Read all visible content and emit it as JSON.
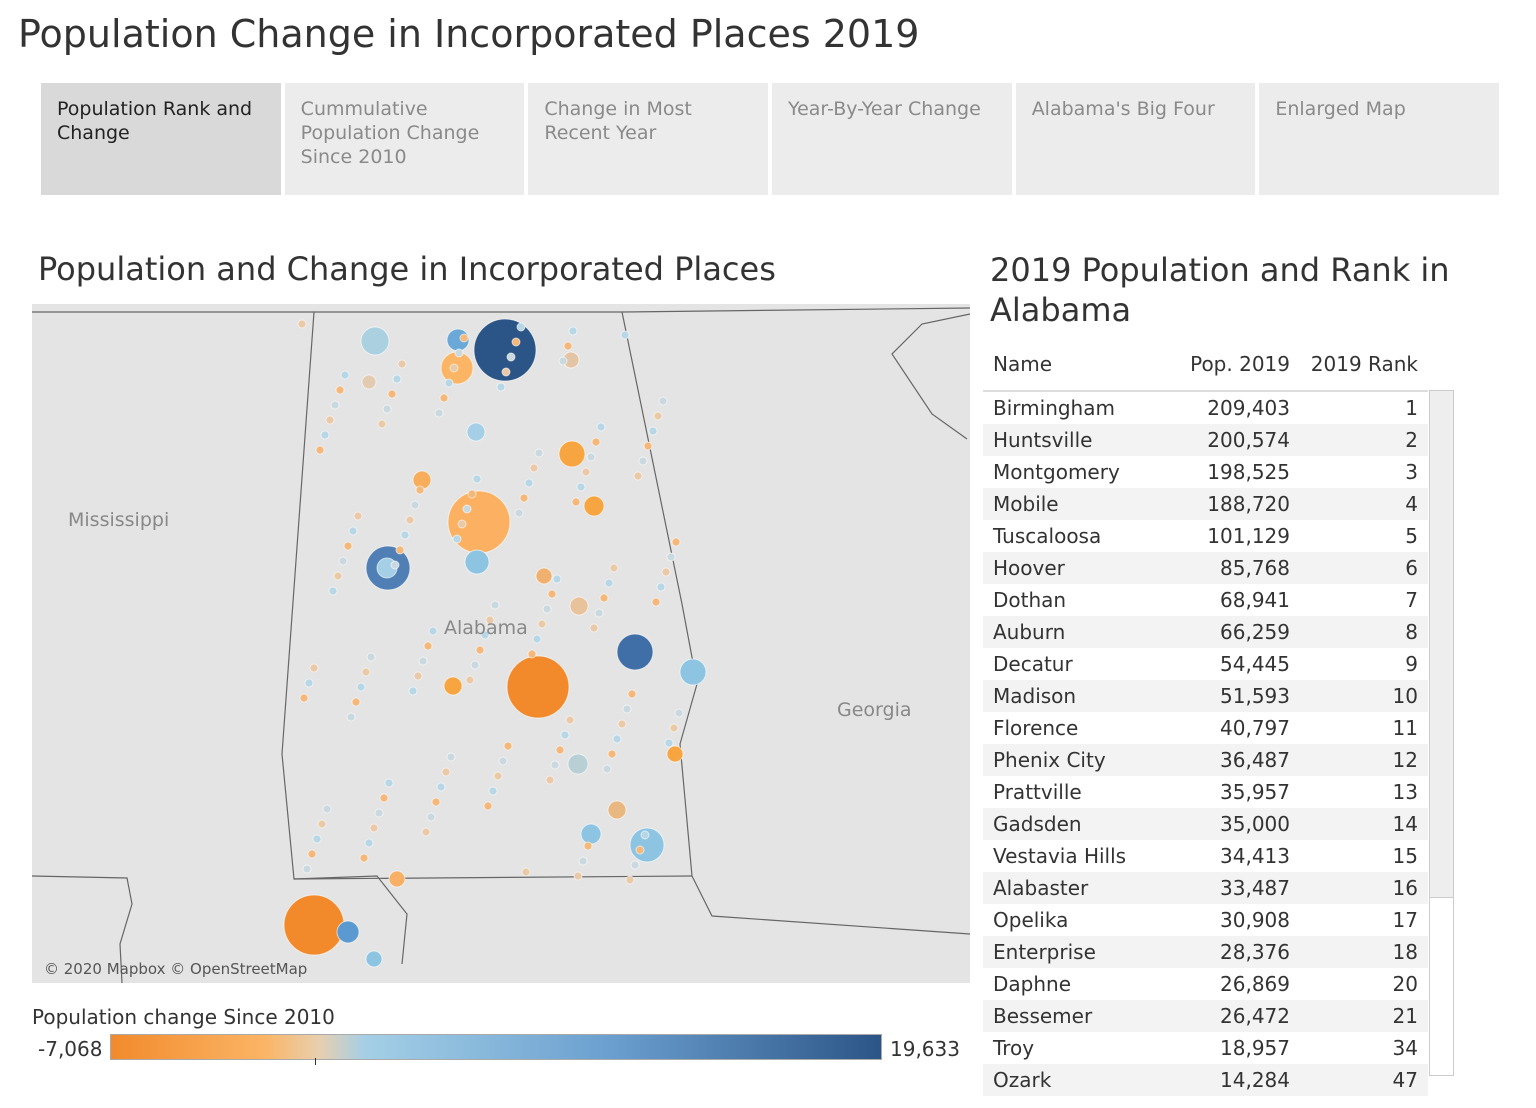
{
  "title": "Population Change in Incorporated Places 2019",
  "tabs": [
    {
      "label": "Population Rank and Change",
      "active": true
    },
    {
      "label": "Cummulative Population Change Since 2010"
    },
    {
      "label": "Change in Most Recent Year"
    },
    {
      "label": "Year-By-Year Change"
    },
    {
      "label": "Alabama's Big Four"
    },
    {
      "label": "Enlarged Map"
    }
  ],
  "map": {
    "title": "Population and Change in Incorporated Places",
    "labels": {
      "ms": "Mississippi",
      "al": "Alabama",
      "ga": "Georgia"
    },
    "attribution": "© 2020 Mapbox © OpenStreetMap"
  },
  "legend": {
    "title": "Population change Since 2010",
    "min": "-7,068",
    "max": "19,633",
    "colors": [
      "#f28a2c",
      "#fbb565",
      "#a4cfe6",
      "#2c5587"
    ]
  },
  "table": {
    "title": "2019 Population and Rank in Alabama",
    "headers": [
      "Name",
      "Pop. 2019",
      "2019 Rank"
    ],
    "rows": [
      [
        "Birmingham",
        "209,403",
        "1"
      ],
      [
        "Huntsville",
        "200,574",
        "2"
      ],
      [
        "Montgomery",
        "198,525",
        "3"
      ],
      [
        "Mobile",
        "188,720",
        "4"
      ],
      [
        "Tuscaloosa",
        "101,129",
        "5"
      ],
      [
        "Hoover",
        "85,768",
        "6"
      ],
      [
        "Dothan",
        "68,941",
        "7"
      ],
      [
        "Auburn",
        "66,259",
        "8"
      ],
      [
        "Decatur",
        "54,445",
        "9"
      ],
      [
        "Madison",
        "51,593",
        "10"
      ],
      [
        "Florence",
        "40,797",
        "11"
      ],
      [
        "Phenix City",
        "36,487",
        "12"
      ],
      [
        "Prattville",
        "35,957",
        "13"
      ],
      [
        "Gadsden",
        "35,000",
        "14"
      ],
      [
        "Vestavia Hills",
        "34,413",
        "15"
      ],
      [
        "Alabaster",
        "33,487",
        "16"
      ],
      [
        "Opelika",
        "30,908",
        "17"
      ],
      [
        "Enterprise",
        "28,376",
        "18"
      ],
      [
        "Daphne",
        "26,869",
        "20"
      ],
      [
        "Bessemer",
        "26,472",
        "21"
      ],
      [
        "Troy",
        "18,957",
        "34"
      ],
      [
        "Ozark",
        "14,284",
        "47"
      ]
    ]
  }
}
